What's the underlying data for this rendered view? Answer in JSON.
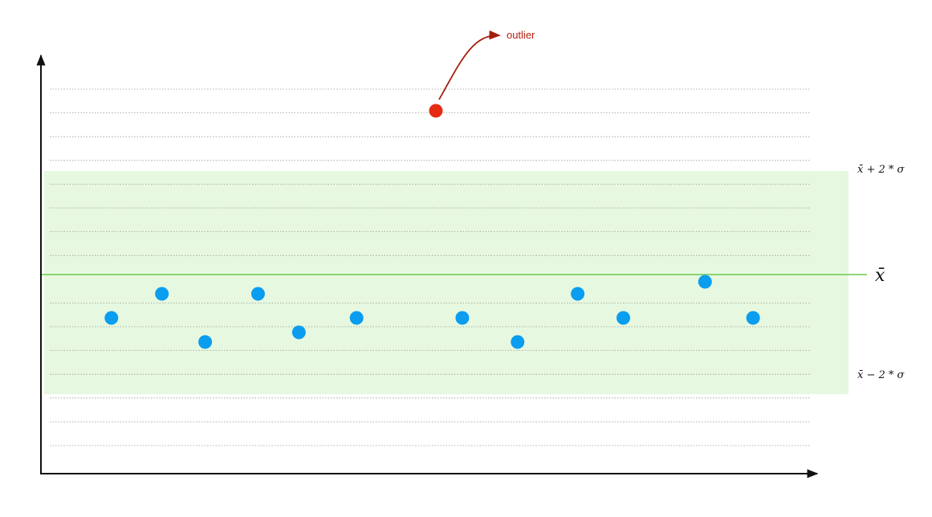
{
  "chart_data": {
    "type": "scatter",
    "title": "",
    "xlabel": "",
    "ylabel": "",
    "xlim": [
      0,
      16
    ],
    "ylim": [
      -4,
      4
    ],
    "mean": 0,
    "sigma": 1,
    "band": [
      -2,
      2
    ],
    "grid": "horizontal-dotted",
    "series": [
      {
        "points": [
          {
            "x": 1.45,
            "y": -0.9
          },
          {
            "x": 2.5,
            "y": -0.4
          },
          {
            "x": 3.4,
            "y": -1.4
          },
          {
            "x": 4.5,
            "y": -0.4
          },
          {
            "x": 5.35,
            "y": -1.2
          },
          {
            "x": 6.55,
            "y": -0.9
          },
          {
            "x": 8.75,
            "y": -0.9
          },
          {
            "x": 9.9,
            "y": -1.4
          },
          {
            "x": 11.15,
            "y": -0.4
          },
          {
            "x": 12.1,
            "y": -0.9
          },
          {
            "x": 13.8,
            "y": -0.15
          },
          {
            "x": 14.8,
            "y": -0.9
          }
        ]
      },
      {
        "points": [
          {
            "x": 8.2,
            "y": 3.4
          }
        ]
      }
    ],
    "annotations": {
      "mean_label": "x̄",
      "upper_label": "x̄ + 2 * σ",
      "lower_label": "x̄ − 2 * σ",
      "outlier_label": "outlier"
    }
  },
  "colors": {
    "normal_point": "#0a9df0",
    "outlier_point": "#e52b14",
    "band_fill": "#e6f8e0",
    "mean_line": "#6cc94f",
    "grid": "#9a9a9a",
    "axis": "#111111",
    "arrow": "#a51d0b"
  }
}
